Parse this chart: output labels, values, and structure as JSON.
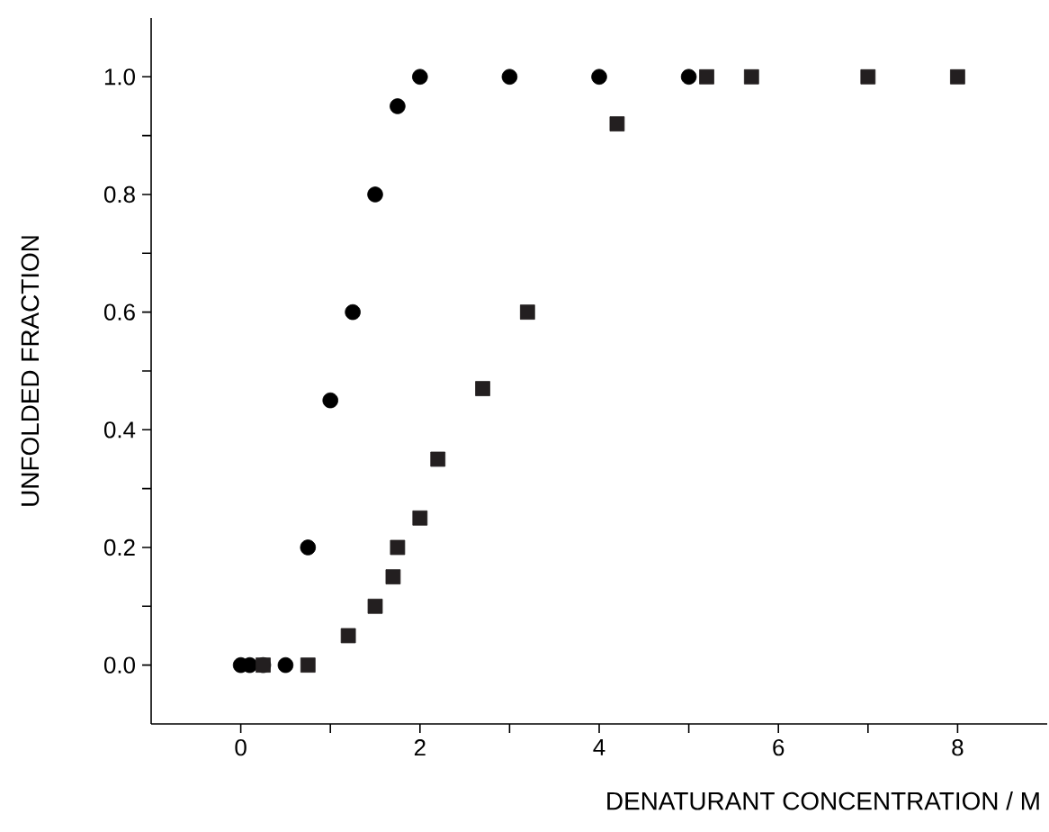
{
  "chart_data": {
    "type": "scatter",
    "xlabel": "DENATURANT CONCENTRATION / M",
    "ylabel": "UNFOLDED FRACTION",
    "series": [
      {
        "color": "#000000",
        "marker": "circle",
        "x": [
          0,
          0.1,
          0.25,
          0.5,
          0.75,
          1.0,
          1.25,
          1.5,
          1.75,
          2.0,
          3.0,
          4.0,
          5.0
        ],
        "values": [
          0,
          0,
          0,
          0,
          0.2,
          0.45,
          0.6,
          0.8,
          0.95,
          1.0,
          1.0,
          1.0,
          1.0
        ]
      },
      {
        "color": "#231f20",
        "marker": "square",
        "x": [
          0.25,
          0.75,
          1.2,
          1.5,
          1.7,
          1.75,
          2.0,
          2.2,
          2.7,
          3.2,
          4.2,
          5.2,
          5.7,
          7.0,
          8.0
        ],
        "values": [
          0,
          0,
          0.05,
          0.1,
          0.15,
          0.2,
          0.25,
          0.35,
          0.47,
          0.6,
          0.92,
          1.0,
          1.0,
          1.0,
          1.0
        ]
      }
    ],
    "xlim": [
      -1,
      9
    ],
    "ylim": [
      -0.1,
      1.1
    ],
    "xticks": [
      0,
      {
        "value": 1,
        "label": null
      },
      2,
      {
        "value": 3,
        "label": null
      },
      4,
      {
        "value": 5,
        "label": null
      },
      6,
      {
        "value": 7,
        "label": null
      },
      8
    ],
    "yticks": [
      {
        "value": 0,
        "label": "0.0"
      },
      {
        "value": 0.1,
        "label": null
      },
      {
        "value": 0.2,
        "label": "0.2"
      },
      {
        "value": 0.3,
        "label": null
      },
      {
        "value": 0.4,
        "label": "0.4"
      },
      {
        "value": 0.5,
        "label": null
      },
      {
        "value": 0.6,
        "label": "0.6"
      },
      {
        "value": 0.7,
        "label": null
      },
      {
        "value": 0.8,
        "label": "0.8"
      },
      {
        "value": 0.9,
        "label": null
      },
      {
        "value": 1.0,
        "label": "1.0"
      }
    ],
    "grid": false
  }
}
